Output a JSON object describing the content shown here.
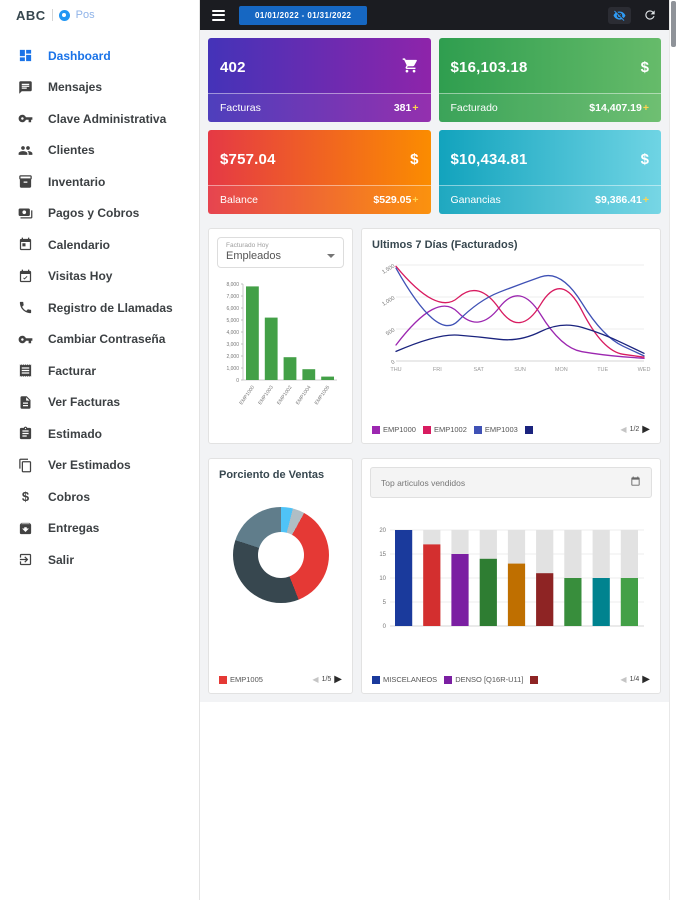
{
  "app": {
    "logo": {
      "brand": "ABC",
      "product": "Pos"
    },
    "topbar": {
      "date_range": "01/01/2022 - 01/31/2022"
    }
  },
  "sidebar": {
    "items": [
      {
        "label": "Dashboard",
        "icon": "dashboard-icon",
        "active": true
      },
      {
        "label": "Mensajes",
        "icon": "message-icon",
        "active": false
      },
      {
        "label": "Clave Administrativa",
        "icon": "key-icon",
        "active": false
      },
      {
        "label": "Clientes",
        "icon": "people-icon",
        "active": false
      },
      {
        "label": "Inventario",
        "icon": "inventory-icon",
        "active": false
      },
      {
        "label": "Pagos y Cobros",
        "icon": "payments-icon",
        "active": false
      },
      {
        "label": "Calendario",
        "icon": "calendar-icon",
        "active": false
      },
      {
        "label": "Visitas Hoy",
        "icon": "calendar-check-icon",
        "active": false
      },
      {
        "label": "Registro de Llamadas",
        "icon": "phone-icon",
        "active": false
      },
      {
        "label": "Cambiar Contraseña",
        "icon": "key-icon",
        "active": false
      },
      {
        "label": "Facturar",
        "icon": "receipt-icon",
        "active": false
      },
      {
        "label": "Ver Facturas",
        "icon": "document-icon",
        "active": false
      },
      {
        "label": "Estimado",
        "icon": "assignment-icon",
        "active": false
      },
      {
        "label": "Ver Estimados",
        "icon": "copy-icon",
        "active": false
      },
      {
        "label": "Cobros",
        "icon": "dollar-icon",
        "active": false
      },
      {
        "label": "Entregas",
        "icon": "archive-icon",
        "active": false
      },
      {
        "label": "Salir",
        "icon": "logout-icon",
        "active": false
      }
    ]
  },
  "cards": [
    {
      "value": "402",
      "label": "Facturas",
      "secondary": "381",
      "plus": "+",
      "icon": "cart-icon",
      "gradient": [
        "#4433b8",
        "#8e24aa"
      ]
    },
    {
      "value": "$16,103.18",
      "label": "Facturado",
      "secondary": "$14,407.19",
      "plus": "+",
      "icon": "dollar-icon",
      "gradient": [
        "#2f9e4f",
        "#66bb6a"
      ]
    },
    {
      "value": "$757.04",
      "label": "Balance",
      "secondary": "$529.05",
      "plus": "+",
      "icon": "dollar-icon",
      "gradient": [
        "#e53945",
        "#fb8c00"
      ]
    },
    {
      "value": "$10,434.81",
      "label": "Ganancias",
      "secondary": "$9,386.41",
      "plus": "+",
      "icon": "dollar-icon",
      "gradient": [
        "#12a3bd",
        "#6fd4e4"
      ]
    }
  ],
  "chart_data": [
    {
      "id": "facturado-hoy",
      "type": "bar",
      "label": "Facturado Hoy",
      "selected": "Empleados",
      "categories": [
        "EMP1000",
        "EMP1003",
        "EMP1002",
        "EMP1004",
        "EMP1005"
      ],
      "values": [
        7800,
        5200,
        1900,
        900,
        280
      ],
      "bar_color": "#43a047",
      "ylim": [
        0,
        8000
      ],
      "yticks": [
        "8,000",
        "7,000",
        "6,000",
        "5,000",
        "4,000",
        "3,000",
        "2,000",
        "1,000",
        "0"
      ]
    },
    {
      "id": "ultimos-7-dias",
      "type": "line",
      "title": "Ultimos 7 Días (Facturados)",
      "x": [
        "THU",
        "FRI",
        "SAT",
        "SUN",
        "MON",
        "TUE",
        "WED"
      ],
      "ylim": [
        0,
        1500
      ],
      "yticks": [
        "1,500",
        "1,000",
        "500",
        "0"
      ],
      "series": [
        {
          "name": "EMP1000",
          "color": "#9c27b0",
          "values": [
            250,
            1100,
            420,
            1250,
            200,
            90,
            40
          ]
        },
        {
          "name": "EMP1002",
          "color": "#d81b60",
          "values": [
            1480,
            700,
            1280,
            350,
            1420,
            150,
            60
          ]
        },
        {
          "name": "EMP1003",
          "color": "#3f51b5",
          "values": [
            1450,
            300,
            950,
            1200,
            1430,
            380,
            80
          ]
        },
        {
          "name": "",
          "color": "#1a237e",
          "values": [
            150,
            430,
            380,
            300,
            620,
            430,
            120
          ]
        }
      ],
      "pagination": "1/2"
    },
    {
      "id": "porciento-de-ventas",
      "type": "donut",
      "title": "Porciento de Ventas",
      "slices": [
        {
          "label": "",
          "value": 4,
          "color": "#4fc3f7"
        },
        {
          "label": "",
          "value": 4,
          "color": "#b0bec5"
        },
        {
          "label": "EMP1005",
          "value": 36,
          "color": "#e53935"
        },
        {
          "label": "",
          "value": 36,
          "color": "#37474f"
        },
        {
          "label": "",
          "value": 20,
          "color": "#607d8b"
        }
      ],
      "legend": [
        {
          "label": "EMP1005",
          "color": "#e53935"
        }
      ],
      "pagination": "1/5"
    },
    {
      "id": "top-articulos-vendidos",
      "type": "bar",
      "header": "Top articulos vendidos",
      "ylim": [
        0,
        20
      ],
      "yticks": [
        "20",
        "15",
        "10",
        "5",
        "0"
      ],
      "values": [
        20,
        17,
        15,
        14,
        13,
        11,
        10,
        10,
        10
      ],
      "colors": [
        "#1a3a9c",
        "#d32f2f",
        "#7b1fa2",
        "#2e7d32",
        "#bf6f00",
        "#8e2424",
        "#388e3c",
        "#00838f",
        "#43a047"
      ],
      "track_color": "#e2e2e2",
      "legend": [
        {
          "label": "MISCELANEOS",
          "color": "#1a3a9c"
        },
        {
          "label": "DENSO [Q16R-U11]",
          "color": "#7b1fa2"
        },
        {
          "label": "",
          "color": "#8e2424"
        }
      ],
      "pagination": "1/4"
    }
  ]
}
